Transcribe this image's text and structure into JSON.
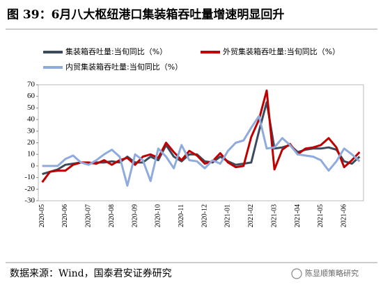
{
  "chart_data": {
    "type": "line",
    "title": "图 39：6月八大枢纽港口集装箱吞吐量增速明显回升",
    "source": "数据来源：Wind，国泰君安证券研究",
    "watermark": "陈显顺策略研究",
    "categories": [
      "2020-05",
      null,
      null,
      "2020-06",
      null,
      null,
      "2020-07",
      null,
      null,
      "2020-08",
      null,
      null,
      "2020-09",
      null,
      null,
      "2020-10",
      null,
      null,
      "2020-11",
      null,
      null,
      "2020-12",
      null,
      null,
      "2021-01",
      null,
      null,
      "2021-02",
      null,
      null,
      "2021-03",
      null,
      null,
      "2021-04",
      null,
      null,
      "2021-05",
      null,
      null,
      "2021-06",
      null,
      null
    ],
    "series": [
      {
        "name": "集装箱吞吐量:当旬同比（%）",
        "color": "#3d4a5c",
        "values": [
          -7,
          -5,
          -3,
          1,
          2,
          3,
          2,
          3,
          3,
          4,
          3,
          8,
          3,
          3,
          8,
          5,
          18,
          8,
          4,
          10,
          10,
          4,
          3,
          8,
          4,
          1,
          2,
          3,
          30,
          55,
          15,
          16,
          18,
          12,
          14,
          15,
          15,
          16,
          14,
          4,
          2,
          8
        ]
      },
      {
        "name": "外贸集装箱吞吐量:当旬同比（%）",
        "color": "#c00000",
        "values": [
          -14,
          -5,
          -4,
          -4,
          1,
          3,
          3,
          2,
          5,
          1,
          5,
          7,
          1,
          8,
          10,
          7,
          20,
          12,
          5,
          13,
          9,
          2,
          4,
          11,
          3,
          -1,
          0,
          25,
          40,
          65,
          -3,
          14,
          19,
          10,
          15,
          16,
          18,
          24,
          16,
          -1,
          5,
          12
        ]
      },
      {
        "name": "内贸集装箱吞吐量:当旬同比（%）",
        "color": "#8faadc",
        "values": [
          0,
          0,
          0,
          6,
          9,
          3,
          1,
          5,
          10,
          14,
          8,
          -17,
          10,
          5,
          -13,
          15,
          8,
          -2,
          18,
          5,
          4,
          -2,
          5,
          2,
          13,
          20,
          22,
          33,
          43,
          15,
          16,
          24,
          18,
          10,
          9,
          8,
          5,
          -4,
          4,
          15,
          10,
          4
        ]
      }
    ],
    "ylim": [
      -30,
      70
    ],
    "yticks": [
      -30,
      -20,
      -10,
      0,
      10,
      20,
      30,
      40,
      50,
      60,
      70
    ]
  }
}
